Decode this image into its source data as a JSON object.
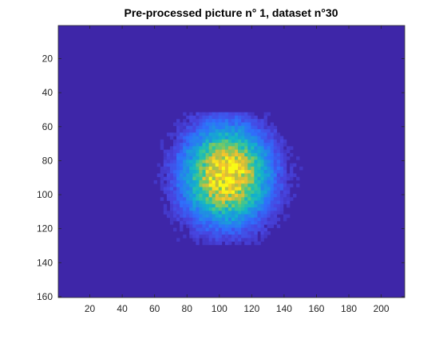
{
  "chart_data": {
    "type": "heatmap",
    "title": "Pre-processed picture n° 1, dataset n°30",
    "xlabel": "",
    "ylabel": "",
    "xlim": [
      0.5,
      214.5
    ],
    "ylim": [
      0.5,
      160.5
    ],
    "y_reversed": true,
    "x_ticks": [
      20,
      40,
      60,
      80,
      100,
      120,
      140,
      160,
      180,
      200
    ],
    "y_ticks": [
      20,
      40,
      60,
      80,
      100,
      120,
      140,
      160
    ],
    "image_width": 214,
    "image_height": 160,
    "colormap": "parula",
    "colormap_stops": [
      "#3e26a8",
      "#4745e0",
      "#2f6ffc",
      "#1f92e0",
      "#12b2cb",
      "#2ec4a0",
      "#76c865",
      "#c4bf3f",
      "#f4c22e",
      "#f9fb15"
    ],
    "background_color": "#3e26a8",
    "blob": {
      "center_x": 104,
      "center_y": 88,
      "sigma_x": 17,
      "sigma_y": 18,
      "extent_x": [
        60,
        155
      ],
      "extent_y": [
        52,
        130
      ],
      "peak_region_x": [
        92,
        115
      ],
      "peak_region_y": [
        72,
        102
      ]
    },
    "grid": false
  }
}
